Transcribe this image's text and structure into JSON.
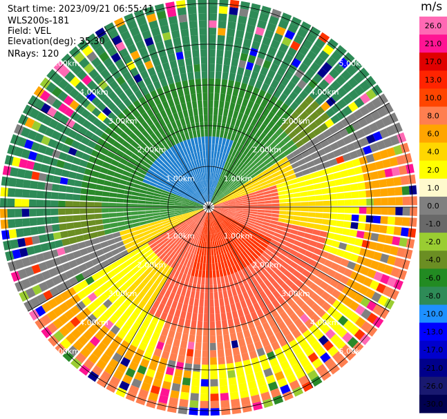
{
  "header": {
    "start_time": "Start time: 2023/09/21 06:55:41",
    "instrument": "WLS200s-181",
    "field": "Field: VEL",
    "elevation": "Elevation(deg): 35.30",
    "nrays": "NRays: 120"
  },
  "rings": {
    "labels": [
      "1.00km",
      "2.00km",
      "3.00km",
      "4.00km",
      "5.00km"
    ]
  },
  "colorbar": {
    "unit": "m/s",
    "ticks": [
      "26.0",
      "21.0",
      "17.0",
      "13.0",
      "10.0",
      "8.0",
      "6.0",
      "4.0",
      "2.0",
      "1.0",
      "0.0",
      "-1.0",
      "-2.0",
      "-4.0",
      "-6.0",
      "-8.0",
      "-10.0",
      "-13.0",
      "-17.0",
      "-21.0",
      "-26.0",
      "-30.0"
    ],
    "colors": [
      "#ff69b4",
      "#ff1493",
      "#e00000",
      "#ff2400",
      "#ff4500",
      "#ff7f50",
      "#ffa500",
      "#ffd700",
      "#ffff00",
      "#fffacd",
      "#808080",
      "#696969",
      "#9acd32",
      "#6b8e23",
      "#228b22",
      "#2e8b57",
      "#1e90ff",
      "#0000ff",
      "#0000cd",
      "#00008b",
      "#191970",
      "#000050"
    ]
  }
}
